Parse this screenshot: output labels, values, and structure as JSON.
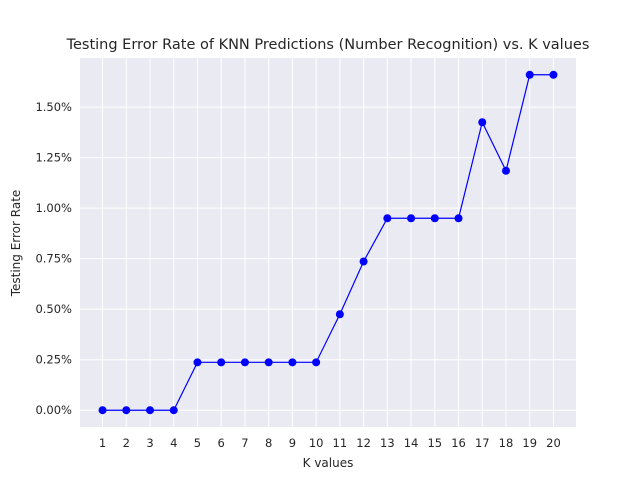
{
  "chart_data": {
    "type": "line",
    "title": "Testing Error Rate of KNN Predictions (Number Recognition) vs. K values",
    "xlabel": "K values",
    "ylabel": "Testing Error Rate",
    "x": [
      1,
      2,
      3,
      4,
      5,
      6,
      7,
      8,
      9,
      10,
      11,
      12,
      13,
      14,
      15,
      16,
      17,
      18,
      19,
      20
    ],
    "x_tick_labels": [
      "1",
      "2",
      "3",
      "4",
      "5",
      "6",
      "7",
      "8",
      "9",
      "10",
      "11",
      "12",
      "13",
      "14",
      "15",
      "16",
      "17",
      "18",
      "19",
      "20"
    ],
    "series": [
      {
        "values": [
          0.0,
          0.0,
          0.0,
          0.0,
          0.237,
          0.237,
          0.237,
          0.237,
          0.237,
          0.237,
          0.475,
          0.736,
          0.95,
          0.95,
          0.95,
          0.95,
          1.425,
          1.185,
          1.66,
          1.66
        ],
        "color": "#0000ff"
      }
    ],
    "y_ticks": [
      0.0,
      0.25,
      0.5,
      0.75,
      1.0,
      1.25,
      1.5
    ],
    "y_tick_labels": [
      "0.00%",
      "0.25%",
      "0.50%",
      "0.75%",
      "1.00%",
      "1.25%",
      "1.50%"
    ],
    "xlim": [
      0.05,
      20.95
    ],
    "ylim": [
      -0.083,
      1.743
    ],
    "grid": true,
    "background_color": "#eaeaf2",
    "grid_color": "#ffffff"
  }
}
